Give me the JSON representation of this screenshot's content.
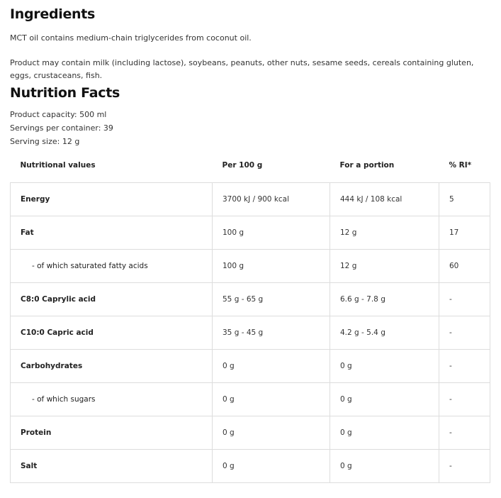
{
  "ingredients": {
    "title": "Ingredients",
    "text1": "MCT oil contains medium-chain triglycerides from coconut oil.",
    "text2": "Product may contain milk (including lactose), soybeans, peanuts, other nuts, sesame seeds, cereals containing gluten, eggs, crustaceans, fish."
  },
  "nutrition": {
    "title": "Nutrition Facts",
    "capacity": "Product capacity: 500 ml",
    "servings": "Servings per container: 39",
    "serving_size": "Serving size: 12 g",
    "headers": [
      "Nutritional values",
      "Per 100 g",
      "For a portion",
      "% RI*"
    ],
    "rows": [
      {
        "name": "Energy",
        "per100": "3700 kJ / 900 kcal",
        "portion": "444 kJ / 108 kcal",
        "ri": "5",
        "sub": false
      },
      {
        "name": "Fat",
        "per100": "100 g",
        "portion": "12 g",
        "ri": "17",
        "sub": false
      },
      {
        "name": "- of which saturated fatty acids",
        "per100": "100 g",
        "portion": "12 g",
        "ri": "60",
        "sub": true
      },
      {
        "name": "C8:0 Caprylic acid",
        "per100": "55 g - 65 g",
        "portion": "6.6 g - 7.8 g",
        "ri": "-",
        "sub": false
      },
      {
        "name": "C10:0 Capric acid",
        "per100": "35 g - 45 g",
        "portion": "4.2 g - 5.4 g",
        "ri": "-",
        "sub": false
      },
      {
        "name": "Carbohydrates",
        "per100": "0 g",
        "portion": "0 g",
        "ri": "-",
        "sub": false
      },
      {
        "name": "- of which sugars",
        "per100": "0 g",
        "portion": "0 g",
        "ri": "-",
        "sub": true
      },
      {
        "name": "Protein",
        "per100": "0 g",
        "portion": "0 g",
        "ri": "-",
        "sub": false
      },
      {
        "name": "Salt",
        "per100": "0 g",
        "portion": "0 g",
        "ri": "-",
        "sub": false
      }
    ]
  }
}
